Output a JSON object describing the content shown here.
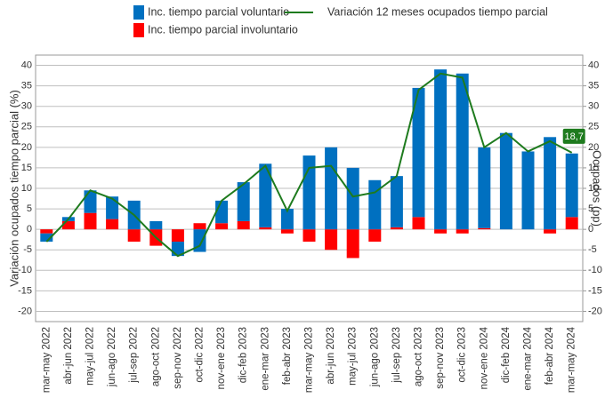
{
  "chart_data": {
    "type": "bar",
    "stacked": true,
    "ylabel": "Variación ocupados tiempo parcial (%)",
    "y2label": "Ocupados (pp)",
    "categories": [
      "mar-may 2022",
      "abr-jun 2022",
      "may-jul 2022",
      "jun-ago 2022",
      "jul-sep 2022",
      "ago-oct 2022",
      "sep-nov 2022",
      "oct-dic 2022",
      "nov-ene 2023",
      "dic-feb 2023",
      "ene-mar 2023",
      "feb-abr 2023",
      "mar-may 2023",
      "abr-jun 2023",
      "may-jul 2023",
      "jun-ago 2023",
      "jul-sep 2023",
      "ago-oct 2023",
      "sep-nov 2023",
      "oct-dic 2023",
      "nov-ene 2024",
      "dic-feb 2024",
      "ene-mar 2024",
      "feb-abr 2024",
      "mar-may 2024"
    ],
    "series": [
      {
        "name": "Inc. tiempo parcial voluntario",
        "type": "bar",
        "color": "#0070c0",
        "values": [
          -2,
          1,
          5.5,
          5.5,
          7,
          2,
          -3.5,
          -5.5,
          5.5,
          9.5,
          15.5,
          5,
          18,
          20,
          15,
          12,
          12.5,
          31.5,
          39,
          38,
          19.7,
          23.5,
          19,
          22.5,
          15.5
        ]
      },
      {
        "name": "Inc. tiempo parcial involuntario",
        "type": "bar",
        "color": "#ff0000",
        "values": [
          -1,
          2,
          4,
          2.5,
          -3,
          -4,
          -3,
          1.5,
          1.5,
          2,
          0.5,
          -1,
          -3,
          -5,
          -7,
          -3,
          0.5,
          3,
          -1,
          -1,
          0.3,
          0,
          0,
          -1,
          3
        ]
      },
      {
        "name": "Variación 12 meses ocupados tiempo parcial",
        "type": "line",
        "color": "#1e7b1e",
        "axis": "y2",
        "values": [
          -3,
          2.5,
          9.5,
          7.5,
          3.5,
          -2,
          -6.5,
          -4,
          7,
          11,
          15.5,
          4.5,
          15,
          15.5,
          8,
          9,
          13,
          34,
          38,
          37,
          20,
          23.5,
          19,
          21.5,
          18.7
        ],
        "value_labels": [
          null,
          null,
          null,
          null,
          null,
          null,
          null,
          null,
          null,
          null,
          null,
          null,
          null,
          null,
          null,
          null,
          null,
          null,
          null,
          null,
          null,
          null,
          null,
          null,
          "18,7"
        ]
      }
    ],
    "ylim": [
      -22.5,
      42.5
    ],
    "yticks": [
      -20,
      -15,
      -10,
      -5,
      0,
      5,
      10,
      15,
      20,
      25,
      30,
      35,
      40
    ],
    "y2lim": [
      -22.5,
      42.5
    ],
    "y2ticks": [
      -20,
      -15,
      -10,
      -5,
      0,
      5,
      10,
      15,
      20,
      25,
      30,
      35,
      40
    ],
    "grid": true
  }
}
